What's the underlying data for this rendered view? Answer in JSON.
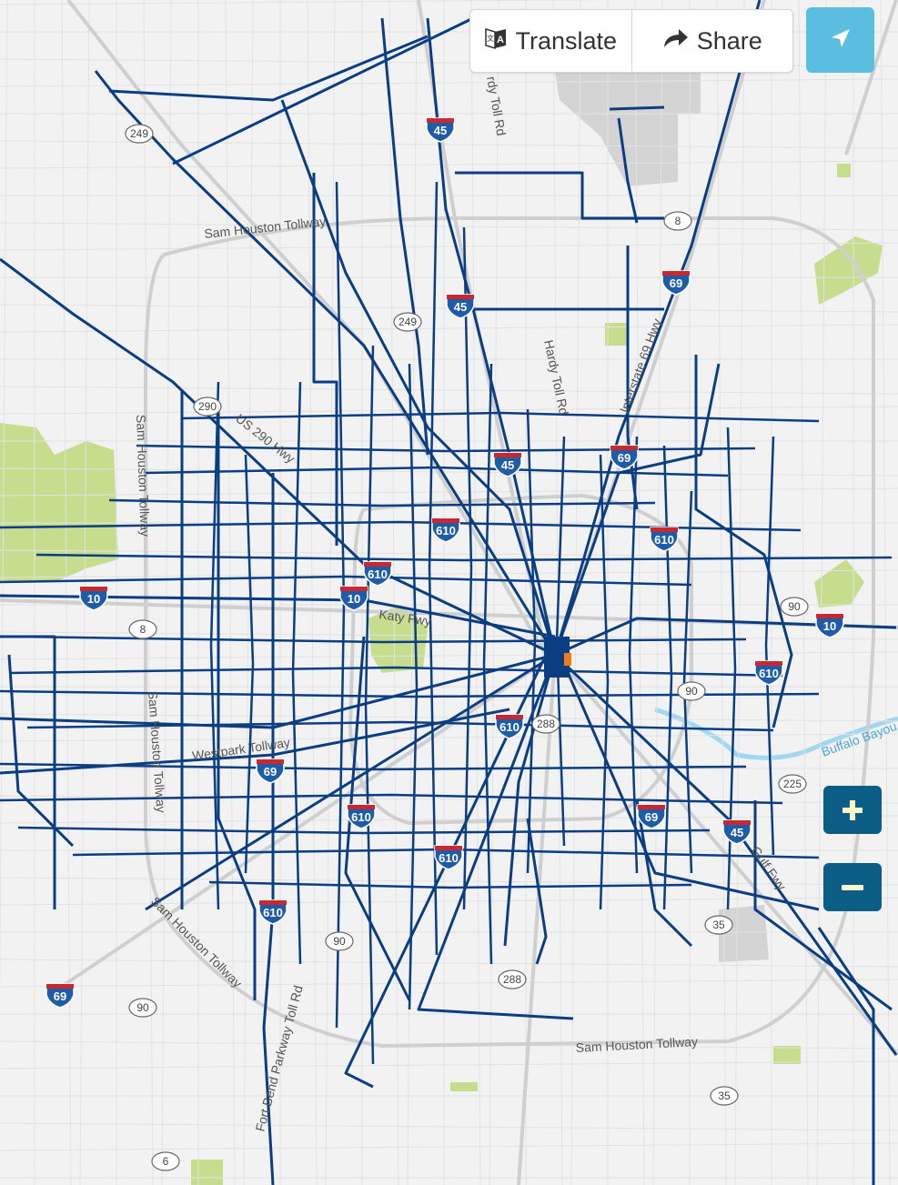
{
  "toolbar": {
    "translate_label": "Translate",
    "share_label": "Share",
    "translate_icon": "translate-icon",
    "share_icon": "share-arrow-icon",
    "locate_icon": "location-arrow-icon"
  },
  "zoom_controls": {
    "zoom_in": "+",
    "zoom_out": "−"
  },
  "colors": {
    "route": "#0a3d82",
    "locate_button": "#5bbde0",
    "zoom_button": "#0b5d86",
    "map_bg": "#f2f2f2",
    "park": "#c5dd8c",
    "water": "#9fd8f0"
  },
  "road_labels": [
    {
      "text": "Sam Houston Tollway"
    },
    {
      "text": "rdy Toll Rd"
    },
    {
      "text": "Hardy Toll Rd"
    },
    {
      "text": "Interstate 69 Hwy"
    },
    {
      "text": "US 290 Hwy"
    },
    {
      "text": "Sam Houston Tollway"
    },
    {
      "text": "Katy Fwy"
    },
    {
      "text": "Sam Houston Tollway"
    },
    {
      "text": "Westpark Tollway"
    },
    {
      "text": "Buffalo Bayou"
    },
    {
      "text": "Gulf Fwy"
    },
    {
      "text": "Sam Houston Tollway"
    },
    {
      "text": "Fort Bend Parkway Toll Rd"
    },
    {
      "text": "Sam Houston Tollway"
    }
  ],
  "shields": [
    {
      "num": "249"
    },
    {
      "num": "8"
    },
    {
      "num": "249"
    },
    {
      "num": "290"
    },
    {
      "num": "8"
    },
    {
      "num": "90"
    },
    {
      "num": "225"
    },
    {
      "num": "35"
    },
    {
      "num": "288"
    },
    {
      "num": "35"
    },
    {
      "num": "6"
    },
    {
      "num": "90"
    },
    {
      "num": "90"
    },
    {
      "num": "90"
    },
    {
      "num": "288"
    }
  ],
  "interstate_shields": [
    {
      "num": "45"
    },
    {
      "num": "69"
    },
    {
      "num": "45"
    },
    {
      "num": "69"
    },
    {
      "num": "45"
    },
    {
      "num": "610"
    },
    {
      "num": "610"
    },
    {
      "num": "10"
    },
    {
      "num": "10"
    },
    {
      "num": "610"
    },
    {
      "num": "10"
    },
    {
      "num": "610"
    },
    {
      "num": "610"
    },
    {
      "num": "69"
    },
    {
      "num": "610"
    },
    {
      "num": "610"
    },
    {
      "num": "45"
    },
    {
      "num": "69"
    },
    {
      "num": "69"
    },
    {
      "num": "610"
    }
  ]
}
